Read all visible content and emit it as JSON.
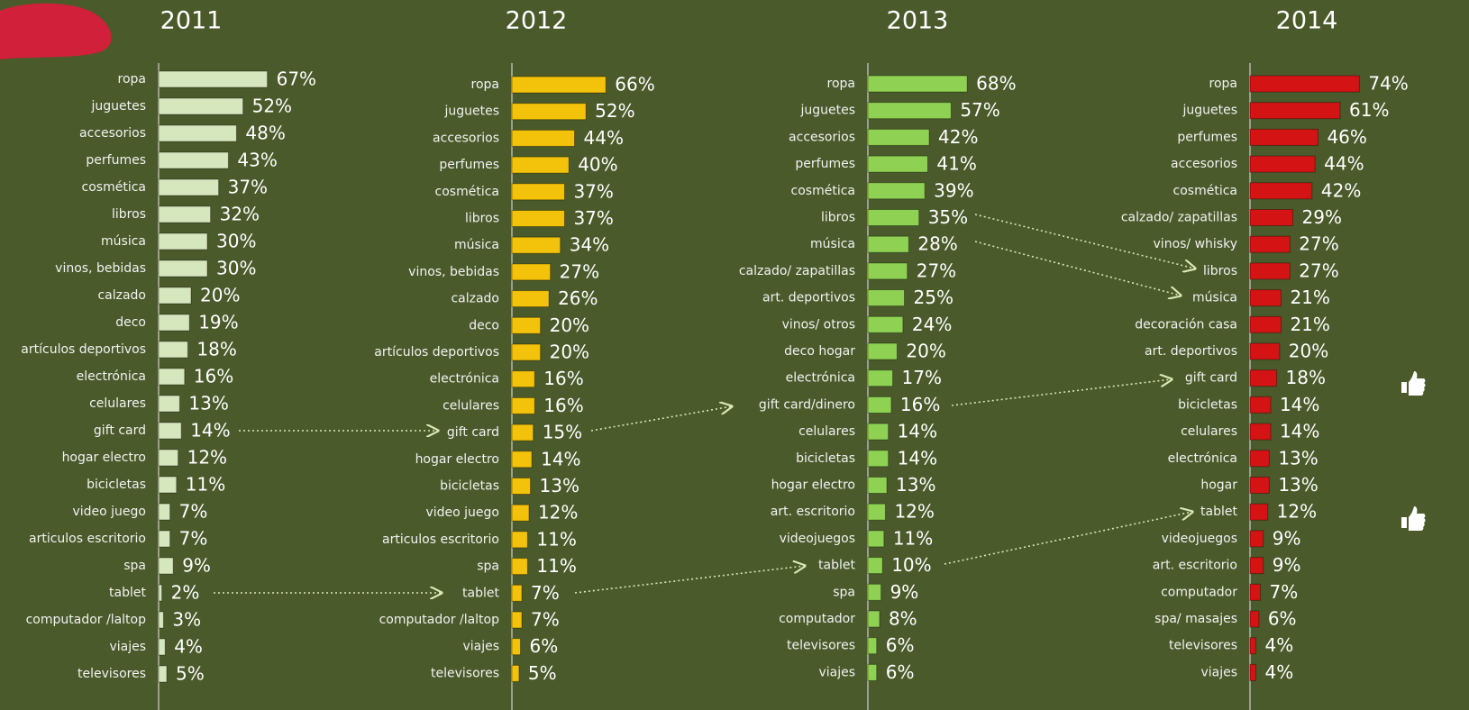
{
  "chart_data": [
    {
      "type": "bar",
      "orientation": "horizontal",
      "title": "2011",
      "color": "#d6e6bd",
      "xlim": [
        0,
        100
      ],
      "categories": [
        "ropa",
        "juguetes",
        "accesorios",
        "perfumes",
        "cosmética",
        "libros",
        "música",
        "vinos, bebidas",
        "calzado",
        "deco",
        "artículos deportivos",
        "electrónica",
        "celulares",
        "gift card",
        "hogar electro",
        "bicicletas",
        "video juego",
        "articulos escritorio",
        "spa",
        "tablet",
        "computador /laltop",
        "viajes",
        "televisores"
      ],
      "values": [
        67,
        52,
        48,
        43,
        37,
        32,
        30,
        30,
        20,
        19,
        18,
        16,
        13,
        14,
        12,
        11,
        7,
        7,
        9,
        2,
        3,
        4,
        5
      ],
      "value_labels": [
        "67%",
        "52%",
        "48%",
        "43%",
        "37%",
        "32%",
        "30%",
        "30%",
        "20%",
        "19%",
        "18%",
        "16%",
        "13%",
        "14%",
        "12%",
        "11%",
        "7%",
        "7%",
        "9%",
        "2%",
        "3%",
        "4%",
        "5%"
      ]
    },
    {
      "type": "bar",
      "orientation": "horizontal",
      "title": "2012",
      "color": "#f3c20a",
      "xlim": [
        0,
        100
      ],
      "categories": [
        "ropa",
        "juguetes",
        "accesorios",
        "perfumes",
        "cosmética",
        "libros",
        "música",
        "vinos, bebidas",
        "calzado",
        "deco",
        "artículos deportivos",
        "electrónica",
        "celulares",
        "gift card",
        "hogar electro",
        "bicicletas",
        "video juego",
        "articulos escritorio",
        "spa",
        "tablet",
        "computador /laltop",
        "viajes",
        "televisores"
      ],
      "values": [
        66,
        52,
        44,
        40,
        37,
        37,
        34,
        27,
        26,
        20,
        20,
        16,
        16,
        15,
        14,
        13,
        12,
        11,
        11,
        7,
        7,
        6,
        5
      ],
      "value_labels": [
        "66%",
        "52%",
        "44%",
        "40%",
        "37%",
        "37%",
        "34%",
        "27%",
        "26%",
        "20%",
        "20%",
        "16%",
        "16%",
        "15%",
        "14%",
        "13%",
        "12%",
        "11%",
        "11%",
        "7%",
        "7%",
        "6%",
        "5%"
      ]
    },
    {
      "type": "bar",
      "orientation": "horizontal",
      "title": "2013",
      "color": "#8fd153",
      "xlim": [
        0,
        100
      ],
      "categories": [
        "ropa",
        "juguetes",
        "accesorios",
        "perfumes",
        "cosmética",
        "libros",
        "música",
        "calzado/ zapatillas",
        "art. deportivos",
        "vinos/ otros",
        "deco hogar",
        "electrónica",
        "gift card/dinero",
        "celulares",
        "bicicletas",
        "hogar electro",
        "art. escritorio",
        "videojuegos",
        "tablet",
        "spa",
        "computador",
        "televisores",
        "viajes"
      ],
      "values": [
        68,
        57,
        42,
        41,
        39,
        35,
        28,
        27,
        25,
        24,
        20,
        17,
        16,
        14,
        14,
        13,
        12,
        11,
        10,
        9,
        8,
        6,
        6
      ],
      "value_labels": [
        "68%",
        "57%",
        "42%",
        "41%",
        "39%",
        "35%",
        "28%",
        "27%",
        "25%",
        "24%",
        "20%",
        "17%",
        "16%",
        "14%",
        "14%",
        "13%",
        "12%",
        "11%",
        "10%",
        "9%",
        "8%",
        "6%",
        "6%"
      ]
    },
    {
      "type": "bar",
      "orientation": "horizontal",
      "title": "2014",
      "color": "#d41414",
      "xlim": [
        0,
        100
      ],
      "categories": [
        "ropa",
        "juguetes",
        "perfumes",
        "accesorios",
        "cosmética",
        "calzado/ zapatillas",
        "vinos/ whisky",
        "libros",
        "música",
        "decoración casa",
        "art. deportivos",
        "gift card",
        "bicicletas",
        "celulares",
        "electrónica",
        "hogar",
        "tablet",
        "videojuegos",
        "art. escritorio",
        "computador",
        "spa/ masajes",
        "televisores",
        "viajes"
      ],
      "values": [
        74,
        61,
        46,
        44,
        42,
        29,
        27,
        27,
        21,
        21,
        20,
        18,
        14,
        14,
        13,
        13,
        12,
        9,
        9,
        7,
        6,
        4,
        4
      ],
      "value_labels": [
        "74%",
        "61%",
        "46%",
        "44%",
        "42%",
        "29%",
        "27%",
        "27%",
        "21%",
        "21%",
        "20%",
        "18%",
        "14%",
        "14%",
        "13%",
        "13%",
        "12%",
        "9%",
        "9%",
        "7%",
        "6%",
        "4%",
        "4%"
      ]
    }
  ]
}
